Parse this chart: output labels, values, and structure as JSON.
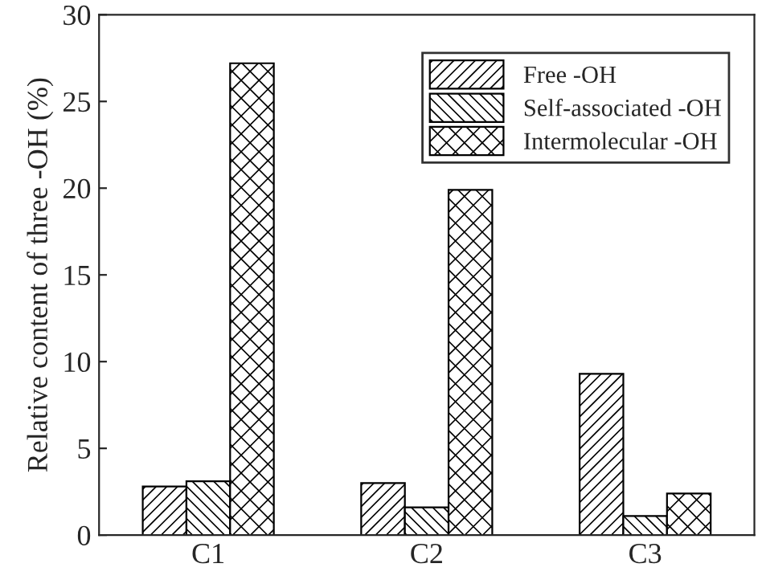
{
  "chart_data": {
    "type": "bar",
    "ylabel": "Relative content of three -OH (%)",
    "categories": [
      "C1",
      "C2",
      "C3"
    ],
    "series": [
      {
        "name": "Free -OH",
        "color": "#000000",
        "values": [
          2.8,
          3.0,
          9.3
        ]
      },
      {
        "name": "Self-associated -OH",
        "color": "#000000",
        "values": [
          3.1,
          1.6,
          1.1
        ]
      },
      {
        "name": "Intermolecular -OH",
        "color": "#000000",
        "values": [
          27.2,
          19.9,
          2.4
        ]
      }
    ],
    "ylim": [
      0,
      30
    ],
    "yticks": [
      0,
      5,
      10,
      15,
      20,
      25,
      30
    ],
    "grid": false,
    "legend": "top right"
  }
}
